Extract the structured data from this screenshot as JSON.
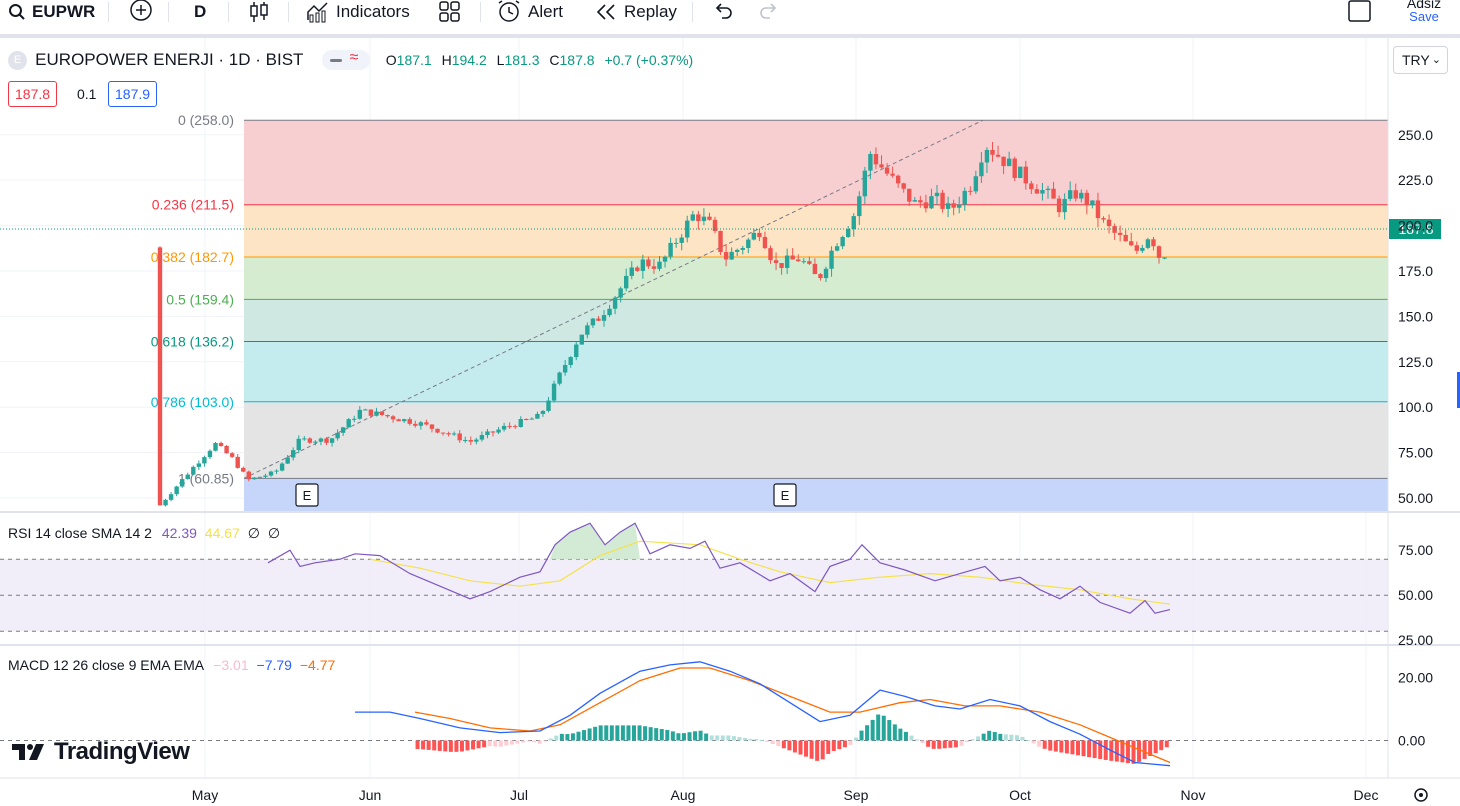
{
  "toolbar": {
    "symbol": "EUPWR",
    "interval": "D",
    "indicators_label": "Indicators",
    "alert_label": "Alert",
    "replay_label": "Replay",
    "user_label": "Adsiz",
    "save_label": "Save"
  },
  "legend": {
    "title": "EUROPOWER ENERJI · 1D · BIST",
    "o_label": "O",
    "o_value": "187.1",
    "h_label": "H",
    "h_value": "194.2",
    "l_label": "L",
    "l_value": "181.3",
    "c_label": "C",
    "c_value": "187.8",
    "change": "+0.7 (+0.37%)",
    "bid": "187.8",
    "spread": "0.1",
    "ask": "187.9"
  },
  "currency": "TRY",
  "colors": {
    "up": "#26a69a",
    "down": "#ef5350",
    "rsi": "#7e57c2",
    "rsi_ma": "#f5e14a",
    "macd": "#2962ff",
    "signal": "#ff6d00"
  },
  "rsi_legend": {
    "label": "RSI 14 close SMA 14 2",
    "rsi": "42.39",
    "ma": "44.67",
    "x1": "∅",
    "x2": "∅"
  },
  "macd_legend": {
    "label": "MACD 12 26 close 9 EMA EMA",
    "hist": "−3.01",
    "macd": "−7.79",
    "signal": "−4.77"
  },
  "last_price_label": "187.8",
  "logo_text": "TradingView",
  "chart_data": {
    "type": "candlestick",
    "title": "EUROPOWER ENERJI · 1D · BIST",
    "x_axis": {
      "ticks": [
        "May",
        "Jun",
        "Jul",
        "Aug",
        "Sep",
        "Oct",
        "Nov",
        "Dec"
      ]
    },
    "y_axis": {
      "ticks": [
        "250.0",
        "225.0",
        "200.0",
        "175.0",
        "150.0",
        "125.0",
        "100.0",
        "75.00",
        "50.00"
      ],
      "range": [
        38,
        268
      ]
    },
    "fib_levels": [
      {
        "label": "0 (258.0)",
        "value": 258.0,
        "color": "#787b86",
        "fill": "#f8cfd1"
      },
      {
        "label": "0.236 (211.5)",
        "value": 211.5,
        "color": "#f23645",
        "fill": "#fde4c4"
      },
      {
        "label": "0.382 (182.7)",
        "value": 182.7,
        "color": "#ff9800",
        "fill": "#d6ecd1"
      },
      {
        "label": "0.5 (159.4)",
        "value": 159.4,
        "color": "#4caf50",
        "fill": "#cfe9e2"
      },
      {
        "label": "0.618 (136.2)",
        "value": 136.2,
        "color": "#089981",
        "fill": "#c4ecef"
      },
      {
        "label": "0.786 (103.0)",
        "value": 103.0,
        "color": "#00bcd4",
        "fill": "#e4e4e4"
      },
      {
        "label": "1 (60.85)",
        "value": 60.85,
        "color": "#787b86",
        "fill": "#c6d6fb"
      }
    ],
    "earnings_markers": [
      "E",
      "E"
    ],
    "rsi_axis": [
      "75.00",
      "50.00",
      "25.00"
    ],
    "macd_axis": [
      "20.00",
      "0.00"
    ]
  }
}
